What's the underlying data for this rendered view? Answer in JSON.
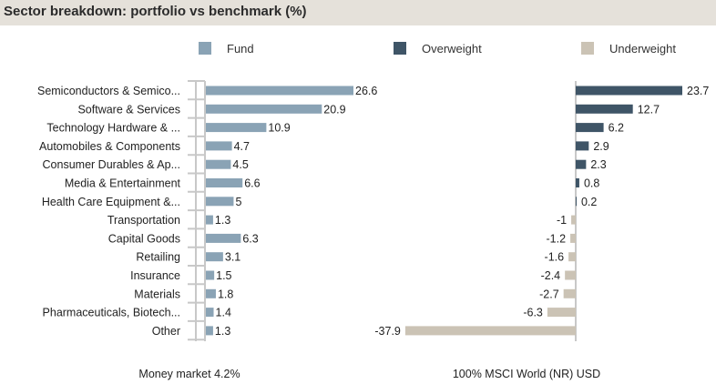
{
  "title": "Sector breakdown: portfolio vs benchmark (%)",
  "legend": [
    {
      "label": "Fund",
      "color": "#8aa3b5"
    },
    {
      "label": "Overweight",
      "color": "#3f5567"
    },
    {
      "label": "Underweight",
      "color": "#cbc3b5"
    }
  ],
  "footnotes": {
    "left": "Money market 4.2%",
    "right": "100% MSCI World (NR) USD"
  },
  "chart_data": {
    "type": "bar",
    "categories": [
      "Semiconductors & Semico...",
      "Software & Services",
      "Technology Hardware & ...",
      "Automobiles & Components",
      "Consumer Durables & Ap...",
      "Media & Entertainment",
      "Health Care Equipment &...",
      "Transportation",
      "Capital Goods",
      "Retailing",
      "Insurance",
      "Materials",
      "Pharmaceuticals, Biotech...",
      "Other"
    ],
    "series": [
      {
        "name": "Fund",
        "values": [
          26.6,
          20.9,
          10.9,
          4.7,
          4.5,
          6.6,
          5,
          1.3,
          6.3,
          3.1,
          1.5,
          1.8,
          1.4,
          1.3
        ]
      },
      {
        "name": "Overweight / Underweight",
        "values": [
          23.7,
          12.7,
          6.2,
          2.9,
          2.3,
          0.8,
          0.2,
          -1,
          -1.2,
          -1.6,
          -2.4,
          -2.7,
          -6.3,
          -37.9
        ]
      }
    ],
    "value_labels": {
      "fund": [
        "26.6",
        "20.9",
        "10.9",
        "4.7",
        "4.5",
        "6.6",
        "5",
        "1.3",
        "6.3",
        "3.1",
        "1.5",
        "1.8",
        "1.4",
        "1.3"
      ],
      "relative": [
        "23.7",
        "12.7",
        "6.2",
        "2.9",
        "2.3",
        "0.8",
        "0.2",
        "-1",
        "-1.2",
        "-1.6",
        "-2.4",
        "-2.7",
        "-6.3",
        "-37.9"
      ]
    },
    "colors": {
      "fund": "#8aa3b5",
      "overweight": "#3f5567",
      "underweight": "#cbc3b5",
      "axis": "#c8c8c8"
    }
  }
}
